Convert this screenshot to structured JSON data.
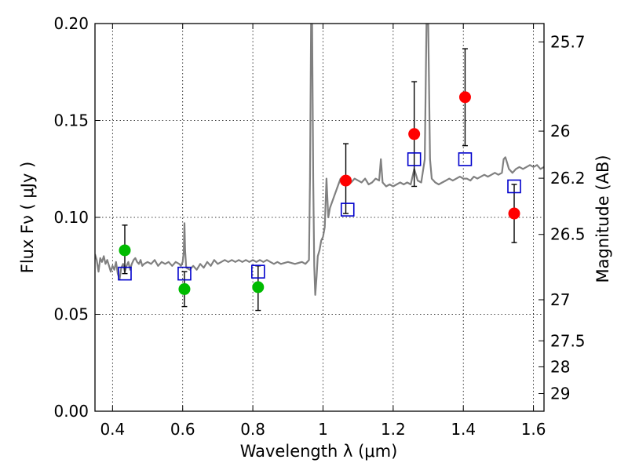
{
  "chart_data": {
    "type": "scatter",
    "xlabel": "Wavelength  λ (μm)",
    "ylabel": "Flux  Fν  ( μJy )",
    "ylabel_right": "Magnitude (AB)",
    "xlim": [
      0.35,
      1.63
    ],
    "ylim": [
      0.0,
      0.2
    ],
    "grid": true,
    "x_ticks": [
      {
        "value": 0.4,
        "label": "0.4"
      },
      {
        "value": 0.6,
        "label": "0.6"
      },
      {
        "value": 0.8,
        "label": "0.8"
      },
      {
        "value": 1.0,
        "label": "1"
      },
      {
        "value": 1.2,
        "label": "1.2"
      },
      {
        "value": 1.4,
        "label": "1.4"
      },
      {
        "value": 1.6,
        "label": "1.6"
      }
    ],
    "y_ticks": [
      {
        "value": 0.0,
        "label": "0.00"
      },
      {
        "value": 0.05,
        "label": "0.05"
      },
      {
        "value": 0.1,
        "label": "0.10"
      },
      {
        "value": 0.15,
        "label": "0.15"
      },
      {
        "value": 0.2,
        "label": "0.20"
      }
    ],
    "right_ticks": [
      {
        "flux": 0.1905,
        "label": "25.7"
      },
      {
        "flux": 0.1445,
        "label": "26"
      },
      {
        "flux": 0.1202,
        "label": "26.2"
      },
      {
        "flux": 0.0912,
        "label": "26.5"
      },
      {
        "flux": 0.0575,
        "label": "27"
      },
      {
        "flux": 0.0363,
        "label": "27.5"
      },
      {
        "flux": 0.0229,
        "label": "28"
      },
      {
        "flux": 0.0091,
        "label": "29"
      }
    ],
    "series": [
      {
        "kind": "spectrum",
        "color": "#808080",
        "points": [
          [
            0.35,
            0.081
          ],
          [
            0.355,
            0.078
          ],
          [
            0.36,
            0.072
          ],
          [
            0.365,
            0.079
          ],
          [
            0.37,
            0.077
          ],
          [
            0.375,
            0.08
          ],
          [
            0.38,
            0.076
          ],
          [
            0.385,
            0.078
          ],
          [
            0.39,
            0.075
          ],
          [
            0.395,
            0.072
          ],
          [
            0.4,
            0.075
          ],
          [
            0.405,
            0.073
          ],
          [
            0.41,
            0.077
          ],
          [
            0.415,
            0.071
          ],
          [
            0.42,
            0.068
          ],
          [
            0.425,
            0.074
          ],
          [
            0.43,
            0.076
          ],
          [
            0.435,
            0.072
          ],
          [
            0.44,
            0.075
          ],
          [
            0.445,
            0.077
          ],
          [
            0.45,
            0.073
          ],
          [
            0.455,
            0.076
          ],
          [
            0.46,
            0.078
          ],
          [
            0.465,
            0.079
          ],
          [
            0.47,
            0.077
          ],
          [
            0.475,
            0.076
          ],
          [
            0.48,
            0.078
          ],
          [
            0.485,
            0.075
          ],
          [
            0.49,
            0.076
          ],
          [
            0.5,
            0.077
          ],
          [
            0.51,
            0.076
          ],
          [
            0.52,
            0.078
          ],
          [
            0.53,
            0.075
          ],
          [
            0.54,
            0.077
          ],
          [
            0.55,
            0.076
          ],
          [
            0.56,
            0.077
          ],
          [
            0.57,
            0.075
          ],
          [
            0.58,
            0.077
          ],
          [
            0.59,
            0.076
          ],
          [
            0.595,
            0.075
          ],
          [
            0.6,
            0.077
          ],
          [
            0.603,
            0.082
          ],
          [
            0.605,
            0.097
          ],
          [
            0.607,
            0.083
          ],
          [
            0.61,
            0.074
          ],
          [
            0.62,
            0.073
          ],
          [
            0.63,
            0.075
          ],
          [
            0.64,
            0.073
          ],
          [
            0.65,
            0.076
          ],
          [
            0.66,
            0.074
          ],
          [
            0.67,
            0.077
          ],
          [
            0.68,
            0.075
          ],
          [
            0.69,
            0.078
          ],
          [
            0.7,
            0.076
          ],
          [
            0.71,
            0.077
          ],
          [
            0.72,
            0.078
          ],
          [
            0.73,
            0.077
          ],
          [
            0.74,
            0.078
          ],
          [
            0.75,
            0.077
          ],
          [
            0.76,
            0.078
          ],
          [
            0.77,
            0.077
          ],
          [
            0.78,
            0.078
          ],
          [
            0.79,
            0.077
          ],
          [
            0.8,
            0.078
          ],
          [
            0.81,
            0.077
          ],
          [
            0.82,
            0.078
          ],
          [
            0.83,
            0.077
          ],
          [
            0.84,
            0.078
          ],
          [
            0.85,
            0.077
          ],
          [
            0.86,
            0.076
          ],
          [
            0.87,
            0.077
          ],
          [
            0.88,
            0.076
          ],
          [
            0.9,
            0.077
          ],
          [
            0.92,
            0.076
          ],
          [
            0.94,
            0.077
          ],
          [
            0.95,
            0.076
          ],
          [
            0.955,
            0.077
          ],
          [
            0.96,
            0.078
          ],
          [
            0.963,
            0.12
          ],
          [
            0.966,
            0.2
          ],
          [
            0.969,
            0.2
          ],
          [
            0.972,
            0.12
          ],
          [
            0.975,
            0.075
          ],
          [
            0.978,
            0.06
          ],
          [
            0.982,
            0.07
          ],
          [
            0.985,
            0.08
          ],
          [
            0.99,
            0.083
          ],
          [
            0.995,
            0.088
          ],
          [
            1.0,
            0.09
          ],
          [
            1.005,
            0.095
          ],
          [
            1.01,
            0.12
          ],
          [
            1.015,
            0.1
          ],
          [
            1.02,
            0.105
          ],
          [
            1.03,
            0.11
          ],
          [
            1.04,
            0.115
          ],
          [
            1.05,
            0.12
          ],
          [
            1.06,
            0.118
          ],
          [
            1.07,
            0.12
          ],
          [
            1.08,
            0.118
          ],
          [
            1.09,
            0.12
          ],
          [
            1.1,
            0.119
          ],
          [
            1.11,
            0.118
          ],
          [
            1.12,
            0.12
          ],
          [
            1.13,
            0.117
          ],
          [
            1.14,
            0.118
          ],
          [
            1.15,
            0.12
          ],
          [
            1.16,
            0.119
          ],
          [
            1.165,
            0.13
          ],
          [
            1.17,
            0.118
          ],
          [
            1.18,
            0.116
          ],
          [
            1.19,
            0.117
          ],
          [
            1.2,
            0.116
          ],
          [
            1.21,
            0.117
          ],
          [
            1.22,
            0.118
          ],
          [
            1.23,
            0.117
          ],
          [
            1.24,
            0.118
          ],
          [
            1.25,
            0.117
          ],
          [
            1.26,
            0.125
          ],
          [
            1.27,
            0.119
          ],
          [
            1.28,
            0.118
          ],
          [
            1.29,
            0.13
          ],
          [
            1.295,
            0.2
          ],
          [
            1.3,
            0.2
          ],
          [
            1.305,
            0.13
          ],
          [
            1.31,
            0.12
          ],
          [
            1.32,
            0.118
          ],
          [
            1.33,
            0.117
          ],
          [
            1.34,
            0.118
          ],
          [
            1.35,
            0.119
          ],
          [
            1.36,
            0.12
          ],
          [
            1.37,
            0.119
          ],
          [
            1.38,
            0.12
          ],
          [
            1.39,
            0.121
          ],
          [
            1.4,
            0.12
          ],
          [
            1.41,
            0.12
          ],
          [
            1.42,
            0.119
          ],
          [
            1.43,
            0.121
          ],
          [
            1.44,
            0.12
          ],
          [
            1.45,
            0.121
          ],
          [
            1.46,
            0.122
          ],
          [
            1.47,
            0.121
          ],
          [
            1.48,
            0.122
          ],
          [
            1.49,
            0.123
          ],
          [
            1.5,
            0.122
          ],
          [
            1.51,
            0.123
          ],
          [
            1.515,
            0.13
          ],
          [
            1.52,
            0.131
          ],
          [
            1.525,
            0.128
          ],
          [
            1.53,
            0.125
          ],
          [
            1.54,
            0.123
          ],
          [
            1.55,
            0.125
          ],
          [
            1.56,
            0.126
          ],
          [
            1.57,
            0.125
          ],
          [
            1.58,
            0.126
          ],
          [
            1.59,
            0.127
          ],
          [
            1.6,
            0.126
          ],
          [
            1.61,
            0.127
          ],
          [
            1.62,
            0.125
          ],
          [
            1.63,
            0.126
          ]
        ]
      },
      {
        "kind": "model-squares",
        "color": "#0000cc",
        "points": [
          [
            0.435,
            0.071
          ],
          [
            0.605,
            0.071
          ],
          [
            0.815,
            0.072
          ],
          [
            1.07,
            0.104
          ],
          [
            1.26,
            0.13
          ],
          [
            1.405,
            0.13
          ],
          [
            1.545,
            0.116
          ]
        ]
      },
      {
        "kind": "observed-green",
        "color": "#00bb00",
        "points": [
          {
            "x": 0.435,
            "y": 0.083,
            "err": [
              0.071,
              0.096
            ]
          },
          {
            "x": 0.605,
            "y": 0.063,
            "err": [
              0.054,
              0.072
            ]
          },
          {
            "x": 0.815,
            "y": 0.064,
            "err": [
              0.052,
              0.075
            ]
          }
        ]
      },
      {
        "kind": "observed-red",
        "color": "#ff0000",
        "points": [
          {
            "x": 1.065,
            "y": 0.119,
            "err": [
              0.102,
              0.138
            ]
          },
          {
            "x": 1.26,
            "y": 0.143,
            "err": [
              0.116,
              0.17
            ]
          },
          {
            "x": 1.405,
            "y": 0.162,
            "err": [
              0.137,
              0.187
            ]
          },
          {
            "x": 1.545,
            "y": 0.102,
            "err": [
              0.087,
              0.117
            ]
          }
        ]
      }
    ]
  }
}
